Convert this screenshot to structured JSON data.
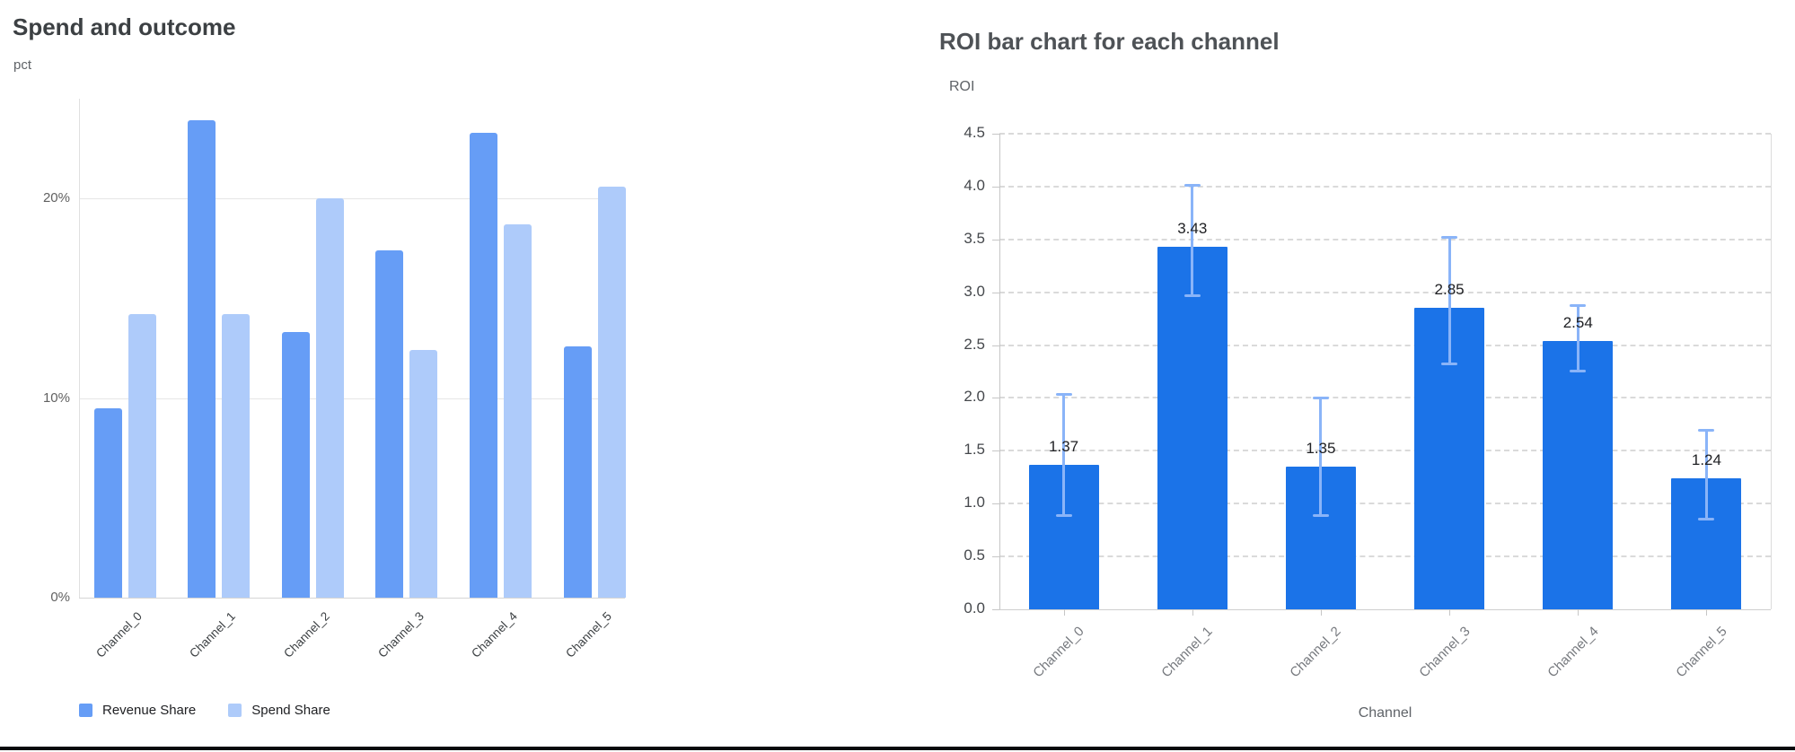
{
  "chart_data": [
    {
      "type": "bar",
      "title": "Spend and outcome",
      "ylabel": "pct",
      "xlabel": "",
      "categories": [
        "Channel_0",
        "Channel_1",
        "Channel_2",
        "Channel_3",
        "Channel_4",
        "Channel_5"
      ],
      "series": [
        {
          "name": "Revenue Share",
          "color": "#669df6",
          "values": [
            9.5,
            23.9,
            13.3,
            17.4,
            23.3,
            12.6
          ]
        },
        {
          "name": "Spend Share",
          "color": "#aecbfa",
          "values": [
            14.2,
            14.2,
            20.0,
            12.4,
            18.7,
            20.6
          ]
        }
      ],
      "ylim": [
        0,
        25
      ],
      "ytick_values": [
        0,
        10,
        20
      ],
      "ytick_labels": [
        "0%",
        "10%",
        "20%"
      ],
      "grid": "horizontal-solid",
      "legend_position": "bottom"
    },
    {
      "type": "bar",
      "title": "ROI bar chart for each channel",
      "ylabel": "ROI",
      "xlabel": "Channel",
      "categories": [
        "Channel_0",
        "Channel_1",
        "Channel_2",
        "Channel_3",
        "Channel_4",
        "Channel_5"
      ],
      "values": [
        1.37,
        3.43,
        1.35,
        2.85,
        2.54,
        1.24
      ],
      "bar_labels": [
        "1.37",
        "3.43",
        "1.35",
        "2.85",
        "2.54",
        "1.24"
      ],
      "error_low": [
        0.88,
        2.96,
        0.88,
        2.32,
        2.25,
        0.85
      ],
      "error_high": [
        2.04,
        4.02,
        2.0,
        3.52,
        2.88,
        1.7
      ],
      "bar_color": "#1b73e8",
      "error_color": "#8ab4f8",
      "ylim": [
        0,
        4.5
      ],
      "ytick_values": [
        0.0,
        0.5,
        1.0,
        1.5,
        2.0,
        2.5,
        3.0,
        3.5,
        4.0,
        4.5
      ],
      "ytick_labels": [
        "0.0",
        "0.5",
        "1.0",
        "1.5",
        "2.0",
        "2.5",
        "3.0",
        "3.5",
        "4.0",
        "4.5"
      ],
      "grid": "horizontal-dashed",
      "legend_position": "none"
    }
  ],
  "colors": {
    "revenue_share": "#669df6",
    "spend_share": "#aecbfa",
    "roi_bar": "#1b73e8",
    "error_bar": "#8ab4f8"
  }
}
